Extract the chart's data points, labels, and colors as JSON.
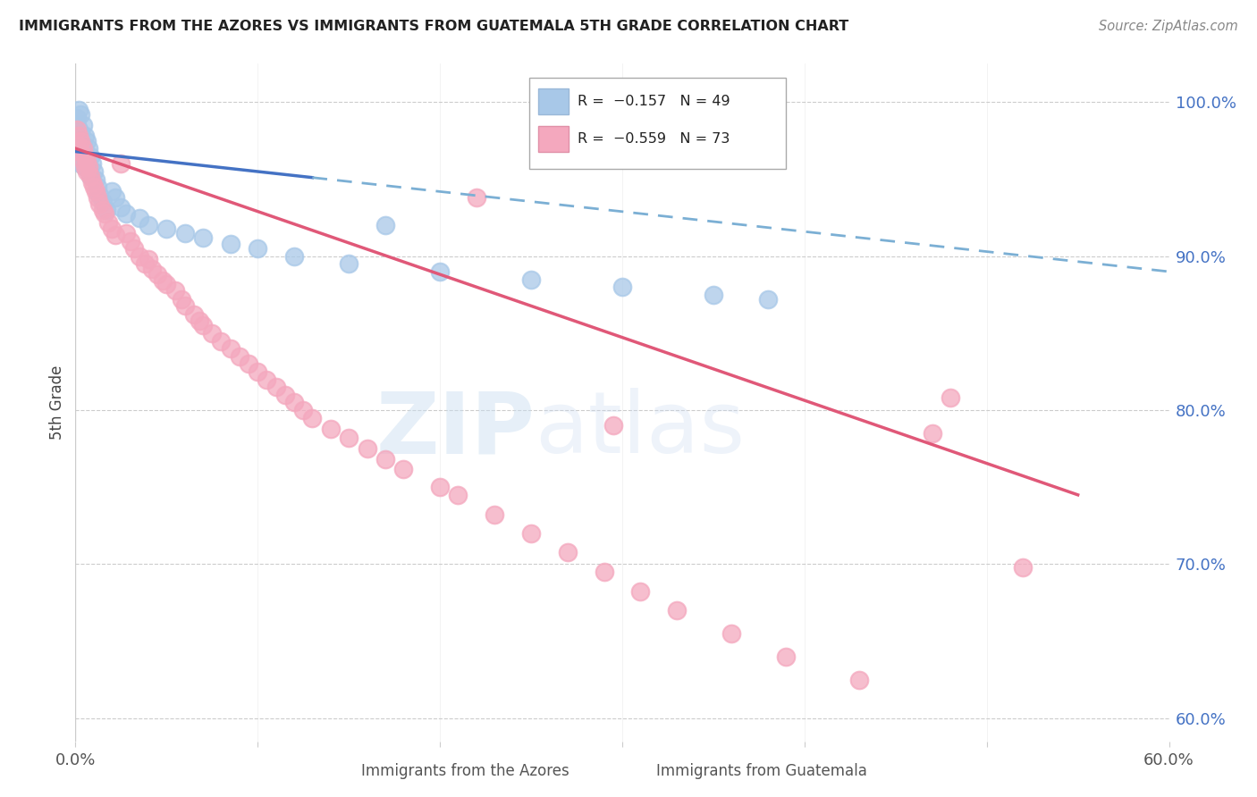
{
  "title": "IMMIGRANTS FROM THE AZORES VS IMMIGRANTS FROM GUATEMALA 5TH GRADE CORRELATION CHART",
  "source": "Source: ZipAtlas.com",
  "ylabel": "5th Grade",
  "legend_label_blue": "Immigrants from the Azores",
  "legend_label_pink": "Immigrants from Guatemala",
  "blue_color": "#a8c8e8",
  "pink_color": "#f4a8be",
  "trendline_blue_solid_color": "#4472c4",
  "trendline_blue_dash_color": "#7bafd4",
  "trendline_pink_color": "#e05878",
  "xlim": [
    0.0,
    0.6
  ],
  "ylim": [
    0.585,
    1.025
  ],
  "yticks": [
    1.0,
    0.9,
    0.8,
    0.7,
    0.6
  ],
  "ytick_labels": [
    "100.0%",
    "90.0%",
    "80.0%",
    "70.0%",
    "60.0%"
  ],
  "xtick_vals": [
    0.0,
    0.1,
    0.2,
    0.3,
    0.4,
    0.5,
    0.6
  ],
  "blue_x": [
    0.001,
    0.001,
    0.001,
    0.002,
    0.002,
    0.002,
    0.002,
    0.003,
    0.003,
    0.003,
    0.003,
    0.004,
    0.004,
    0.004,
    0.005,
    0.005,
    0.005,
    0.006,
    0.006,
    0.007,
    0.007,
    0.008,
    0.008,
    0.009,
    0.01,
    0.011,
    0.012,
    0.013,
    0.015,
    0.017,
    0.02,
    0.022,
    0.025,
    0.028,
    0.035,
    0.04,
    0.05,
    0.06,
    0.07,
    0.085,
    0.1,
    0.12,
    0.15,
    0.2,
    0.25,
    0.3,
    0.35,
    0.38,
    0.17
  ],
  "blue_y": [
    0.985,
    0.99,
    0.978,
    0.995,
    0.982,
    0.975,
    0.968,
    0.992,
    0.98,
    0.97,
    0.96,
    0.985,
    0.972,
    0.962,
    0.978,
    0.968,
    0.958,
    0.975,
    0.962,
    0.97,
    0.958,
    0.965,
    0.952,
    0.96,
    0.955,
    0.95,
    0.945,
    0.94,
    0.935,
    0.93,
    0.942,
    0.938,
    0.932,
    0.928,
    0.925,
    0.92,
    0.918,
    0.915,
    0.912,
    0.908,
    0.905,
    0.9,
    0.895,
    0.89,
    0.885,
    0.88,
    0.875,
    0.872,
    0.92
  ],
  "pink_x": [
    0.001,
    0.002,
    0.002,
    0.003,
    0.003,
    0.004,
    0.004,
    0.005,
    0.005,
    0.006,
    0.006,
    0.007,
    0.008,
    0.009,
    0.01,
    0.011,
    0.012,
    0.013,
    0.015,
    0.016,
    0.018,
    0.02,
    0.022,
    0.025,
    0.028,
    0.03,
    0.032,
    0.035,
    0.038,
    0.04,
    0.042,
    0.045,
    0.048,
    0.05,
    0.055,
    0.058,
    0.06,
    0.065,
    0.068,
    0.07,
    0.075,
    0.08,
    0.085,
    0.09,
    0.095,
    0.1,
    0.105,
    0.11,
    0.115,
    0.12,
    0.125,
    0.13,
    0.14,
    0.15,
    0.16,
    0.17,
    0.18,
    0.2,
    0.21,
    0.22,
    0.23,
    0.25,
    0.27,
    0.29,
    0.31,
    0.33,
    0.36,
    0.39,
    0.43,
    0.47,
    0.52,
    0.48,
    0.295
  ],
  "pink_y": [
    0.982,
    0.978,
    0.972,
    0.975,
    0.968,
    0.97,
    0.962,
    0.965,
    0.958,
    0.962,
    0.955,
    0.958,
    0.952,
    0.948,
    0.945,
    0.942,
    0.938,
    0.934,
    0.93,
    0.928,
    0.922,
    0.918,
    0.914,
    0.96,
    0.915,
    0.91,
    0.905,
    0.9,
    0.895,
    0.898,
    0.892,
    0.888,
    0.884,
    0.882,
    0.878,
    0.872,
    0.868,
    0.862,
    0.858,
    0.855,
    0.85,
    0.845,
    0.84,
    0.835,
    0.83,
    0.825,
    0.82,
    0.815,
    0.81,
    0.805,
    0.8,
    0.795,
    0.788,
    0.782,
    0.775,
    0.768,
    0.762,
    0.75,
    0.745,
    0.938,
    0.732,
    0.72,
    0.708,
    0.695,
    0.682,
    0.67,
    0.655,
    0.64,
    0.625,
    0.785,
    0.698,
    0.808,
    0.79
  ],
  "trendline_blue_x0": 0.0,
  "trendline_blue_x1": 0.6,
  "trendline_blue_y0": 0.968,
  "trendline_blue_y1": 0.89,
  "trendline_blue_solid_end": 0.13,
  "trendline_pink_x0": 0.0,
  "trendline_pink_x1": 0.55,
  "trendline_pink_y0": 0.97,
  "trendline_pink_y1": 0.745
}
